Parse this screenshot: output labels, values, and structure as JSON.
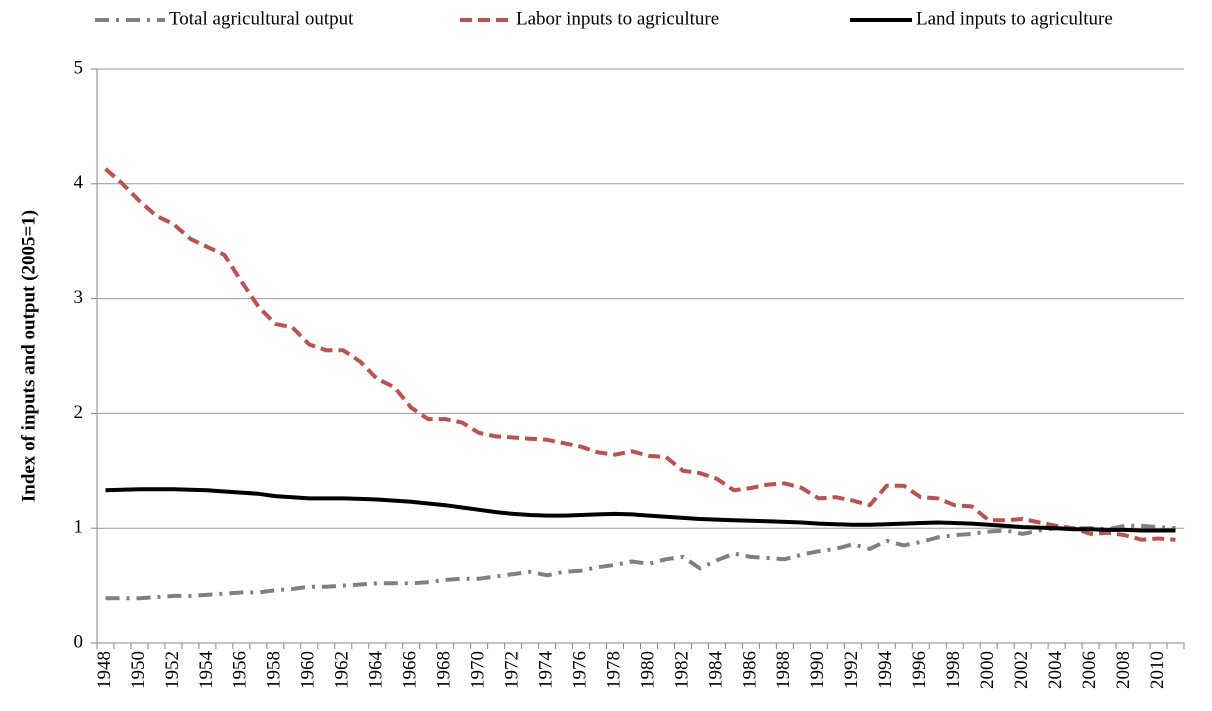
{
  "chart_data": {
    "type": "line",
    "y_label": "Index of inputs and output (2005=1)",
    "categories": [
      "1948",
      null,
      "1950",
      null,
      "1952",
      null,
      "1954",
      null,
      "1956",
      null,
      "1958",
      null,
      "1960",
      null,
      "1962",
      null,
      "1964",
      null,
      "1966",
      null,
      "1968",
      null,
      "1970",
      null,
      "1972",
      null,
      "1974",
      null,
      "1976",
      null,
      "1978",
      null,
      "1980",
      null,
      "1982",
      null,
      "1984",
      null,
      "1986",
      null,
      "1988",
      null,
      "1990",
      null,
      "1992",
      null,
      "1994",
      null,
      "1996",
      null,
      "1998",
      null,
      "2000",
      null,
      "2002",
      null,
      "2004",
      null,
      "2006",
      null,
      "2008",
      null,
      "2010",
      null
    ],
    "series": [
      {
        "name": "Total agricultural output",
        "color": "#808080",
        "line_style": "dash-dot",
        "values": [
          0.39,
          0.39,
          0.39,
          0.4,
          0.41,
          0.41,
          0.42,
          0.43,
          0.44,
          0.44,
          0.46,
          0.47,
          0.49,
          0.49,
          0.5,
          0.51,
          0.52,
          0.52,
          0.52,
          0.53,
          0.55,
          0.56,
          0.56,
          0.58,
          0.6,
          0.62,
          0.59,
          0.62,
          0.63,
          0.66,
          0.68,
          0.71,
          0.69,
          0.73,
          0.75,
          0.65,
          0.72,
          0.78,
          0.75,
          0.74,
          0.73,
          0.77,
          0.8,
          0.82,
          0.86,
          0.82,
          0.89,
          0.85,
          0.88,
          0.92,
          0.94,
          0.95,
          0.97,
          0.98,
          0.95,
          0.98,
          1.0,
          1.0,
          1.0,
          0.99,
          1.02,
          1.02,
          1.01,
          1.0
        ]
      },
      {
        "name": "Labor inputs to agriculture",
        "color": "#c0504d",
        "line_style": "dashed",
        "values": [
          4.13,
          4.0,
          3.85,
          3.72,
          3.65,
          3.52,
          3.45,
          3.38,
          3.15,
          2.93,
          2.78,
          2.75,
          2.6,
          2.55,
          2.55,
          2.45,
          2.3,
          2.23,
          2.05,
          1.95,
          1.95,
          1.92,
          1.83,
          1.8,
          1.79,
          1.78,
          1.77,
          1.74,
          1.71,
          1.66,
          1.64,
          1.67,
          1.63,
          1.62,
          1.5,
          1.48,
          1.43,
          1.33,
          1.35,
          1.38,
          1.39,
          1.35,
          1.26,
          1.27,
          1.24,
          1.2,
          1.37,
          1.37,
          1.27,
          1.26,
          1.2,
          1.19,
          1.07,
          1.07,
          1.08,
          1.05,
          1.02,
          1.0,
          0.95,
          0.96,
          0.94,
          0.9,
          0.91,
          0.9
        ]
      },
      {
        "name": "Land inputs to agriculture",
        "color": "#000000",
        "line_style": "solid",
        "values": [
          1.33,
          1.335,
          1.34,
          1.34,
          1.34,
          1.335,
          1.33,
          1.32,
          1.31,
          1.3,
          1.28,
          1.27,
          1.26,
          1.26,
          1.26,
          1.255,
          1.25,
          1.24,
          1.23,
          1.215,
          1.2,
          1.18,
          1.16,
          1.14,
          1.125,
          1.115,
          1.11,
          1.11,
          1.115,
          1.12,
          1.125,
          1.12,
          1.11,
          1.1,
          1.09,
          1.08,
          1.075,
          1.07,
          1.065,
          1.06,
          1.055,
          1.05,
          1.04,
          1.035,
          1.03,
          1.03,
          1.035,
          1.04,
          1.045,
          1.05,
          1.045,
          1.04,
          1.03,
          1.02,
          1.01,
          1.005,
          1.0,
          0.99,
          0.99,
          0.985,
          0.985,
          0.98,
          0.98,
          0.98
        ]
      }
    ],
    "ylim": [
      0,
      5
    ],
    "yticks": [
      0,
      1,
      2,
      3,
      4,
      5
    ],
    "grid": true,
    "legend": "top"
  }
}
